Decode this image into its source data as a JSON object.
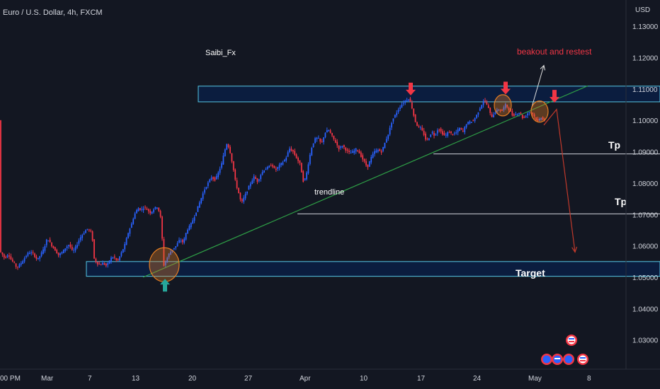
{
  "chart_data": {
    "type": "candlestick",
    "title": "Euro / U.S. Dollar, 4h, FXCM",
    "currency_label": "USD",
    "y_ticks": [
      "1.13000",
      "1.12000",
      "1.11000",
      "1.10000",
      "1.09000",
      "1.08000",
      "1.07000",
      "1.06000",
      "1.05000",
      "1.04000",
      "1.03000"
    ],
    "y_tick_values": [
      1.13,
      1.12,
      1.11,
      1.1,
      1.09,
      1.08,
      1.07,
      1.06,
      1.05,
      1.04,
      1.03
    ],
    "ylim": [
      1.0225,
      1.137
    ],
    "x_ticks": [
      "00 PM",
      "Mar",
      "7",
      "13",
      "20",
      "27",
      "Apr",
      "10",
      "17",
      "24",
      "May",
      "8"
    ],
    "grid": false,
    "colors": {
      "up": "#2962ff",
      "down": "#f23645",
      "background": "#131722",
      "zone_fill": "#0b1d3f",
      "zone_border": "#56c8e6",
      "trendline": "#2e9e46",
      "projection": "#c0392b",
      "marker": "#f23645",
      "support_arrow": "#26a69a"
    },
    "price_path": [
      [
        0,
        1.0585
      ],
      [
        4,
        1.0575
      ],
      [
        8,
        1.056
      ],
      [
        13,
        1.0575
      ],
      [
        17,
        1.0555
      ],
      [
        21,
        1.0545
      ],
      [
        25,
        1.053
      ],
      [
        31,
        1.0545
      ],
      [
        37,
        1.0565
      ],
      [
        42,
        1.058
      ],
      [
        48,
        1.0575
      ],
      [
        54,
        1.0555
      ],
      [
        58,
        1.057
      ],
      [
        63,
        1.059
      ],
      [
        68,
        1.0625
      ],
      [
        73,
        1.0605
      ],
      [
        78,
        1.059
      ],
      [
        84,
        1.057
      ],
      [
        89,
        1.058
      ],
      [
        94,
        1.0595
      ],
      [
        99,
        1.0605
      ],
      [
        104,
        1.058
      ],
      [
        109,
        1.06
      ],
      [
        114,
        1.0625
      ],
      [
        119,
        1.064
      ],
      [
        124,
        1.0655
      ],
      [
        127,
        1.065
      ],
      [
        131,
        1.064
      ],
      [
        134,
        1.056
      ],
      [
        138,
        1.0545
      ],
      [
        142,
        1.054
      ],
      [
        147,
        1.0545
      ],
      [
        152,
        1.0535
      ],
      [
        157,
        1.056
      ],
      [
        162,
        1.0565
      ],
      [
        167,
        1.055
      ],
      [
        172,
        1.0575
      ],
      [
        177,
        1.06
      ],
      [
        182,
        1.064
      ],
      [
        187,
        1.067
      ],
      [
        191,
        1.07
      ],
      [
        196,
        1.072
      ],
      [
        201,
        1.0715
      ],
      [
        205,
        1.0725
      ],
      [
        209,
        1.0715
      ],
      [
        214,
        1.0705
      ],
      [
        219,
        1.072
      ],
      [
        224,
        1.0725
      ],
      [
        229,
        1.068
      ],
      [
        232,
        1.0535
      ],
      [
        236,
        1.0555
      ],
      [
        240,
        1.0575
      ],
      [
        245,
        1.059
      ],
      [
        250,
        1.06
      ],
      [
        255,
        1.062
      ],
      [
        260,
        1.061
      ],
      [
        265,
        1.065
      ],
      [
        270,
        1.0665
      ],
      [
        275,
        1.069
      ],
      [
        280,
        1.072
      ],
      [
        285,
        1.075
      ],
      [
        290,
        1.078
      ],
      [
        295,
        1.08
      ],
      [
        300,
        1.082
      ],
      [
        305,
        1.081
      ],
      [
        309,
        1.083
      ],
      [
        314,
        1.086
      ],
      [
        318,
        1.09
      ],
      [
        322,
        1.093
      ],
      [
        326,
        1.09
      ],
      [
        330,
        1.0855
      ],
      [
        334,
        1.08
      ],
      [
        338,
        1.077
      ],
      [
        342,
        1.0735
      ],
      [
        346,
        1.0755
      ],
      [
        350,
        1.0775
      ],
      [
        355,
        1.08
      ],
      [
        360,
        1.082
      ],
      [
        365,
        1.0805
      ],
      [
        370,
        1.083
      ],
      [
        375,
        1.0845
      ],
      [
        380,
        1.085
      ],
      [
        385,
        1.086
      ],
      [
        390,
        1.084
      ],
      [
        395,
        1.0855
      ],
      [
        400,
        1.0865
      ],
      [
        405,
        1.088
      ],
      [
        410,
        1.091
      ],
      [
        415,
        1.09
      ],
      [
        420,
        1.088
      ],
      [
        425,
        1.086
      ],
      [
        430,
        1.08
      ],
      [
        434,
        1.083
      ],
      [
        438,
        1.088
      ],
      [
        442,
        1.092
      ],
      [
        446,
        1.094
      ],
      [
        450,
        1.0945
      ],
      [
        455,
        1.0925
      ],
      [
        460,
        1.096
      ],
      [
        465,
        1.097
      ],
      [
        470,
        1.095
      ],
      [
        475,
        1.093
      ],
      [
        480,
        1.091
      ],
      [
        485,
        1.092
      ],
      [
        490,
        1.0905
      ],
      [
        495,
        1.0895
      ],
      [
        500,
        1.09
      ],
      [
        505,
        1.091
      ],
      [
        510,
        1.089
      ],
      [
        515,
        1.087
      ],
      [
        520,
        1.085
      ],
      [
        525,
        1.088
      ],
      [
        530,
        1.09
      ],
      [
        535,
        1.0905
      ],
      [
        540,
        1.09
      ],
      [
        545,
        1.093
      ],
      [
        550,
        1.096
      ],
      [
        555,
        1.1
      ],
      [
        560,
        1.102
      ],
      [
        565,
        1.104
      ],
      [
        570,
        1.1055
      ],
      [
        575,
        1.1065
      ],
      [
        579,
        1.107
      ],
      [
        583,
        1.104
      ],
      [
        587,
        1.1
      ],
      [
        591,
        1.098
      ],
      [
        595,
        1.0975
      ],
      [
        599,
        1.096
      ],
      [
        603,
        1.0935
      ],
      [
        607,
        1.0945
      ],
      [
        611,
        1.0965
      ],
      [
        615,
        1.095
      ],
      [
        620,
        1.0975
      ],
      [
        625,
        1.096
      ],
      [
        630,
        1.095
      ],
      [
        635,
        1.0965
      ],
      [
        640,
        1.0955
      ],
      [
        645,
        1.096
      ],
      [
        650,
        1.0975
      ],
      [
        655,
        1.0965
      ],
      [
        660,
        1.099
      ],
      [
        665,
        1.0995
      ],
      [
        670,
        1.1
      ],
      [
        675,
        1.102
      ],
      [
        680,
        1.1045
      ],
      [
        685,
        1.1065
      ],
      [
        690,
        1.1045
      ],
      [
        695,
        1.101
      ],
      [
        700,
        1.1025
      ],
      [
        705,
        1.1035
      ],
      [
        710,
        1.103
      ],
      [
        715,
        1.105
      ],
      [
        720,
        1.1035
      ],
      [
        725,
        1.1015
      ],
      [
        730,
        1.102
      ],
      [
        735,
        1.1025
      ],
      [
        740,
        1.1005
      ],
      [
        745,
        1.102
      ],
      [
        750,
        1.103
      ],
      [
        755,
        1.1015
      ],
      [
        760,
        1.0995
      ],
      [
        765,
        1.101
      ],
      [
        770,
        1.1
      ]
    ],
    "zones": [
      {
        "name": "resistance-zone",
        "x_start": 280,
        "x_end": 932,
        "y_top": 1.1109,
        "y_bottom": 1.1059
      },
      {
        "name": "target-zone",
        "label": "Target",
        "x_start": 122,
        "x_end": 932,
        "y_top": 1.055,
        "y_bottom": 1.0503
      }
    ],
    "trendline": {
      "label": "trendline",
      "from": [
        202,
        1.05
      ],
      "to": [
        830,
        1.111
      ]
    },
    "tp_lines": [
      {
        "label": "Tp",
        "x_start": 612,
        "x_end": 932,
        "y": 1.0893
      },
      {
        "label": "Tp",
        "x_start": 420,
        "x_end": 932,
        "y": 1.0702
      }
    ],
    "projection": [
      [
        768,
        1.0985
      ],
      [
        786,
        1.1035
      ],
      [
        812,
        1.058
      ]
    ],
    "markers_down": [
      [
        580,
        1.1075
      ],
      [
        714,
        1.1078
      ],
      [
        783,
        1.1052
      ]
    ],
    "marker_up": [
      233,
      1.0495
    ],
    "circles": [
      [
        232,
        1.054
      ],
      [
        710,
        1.1048
      ],
      [
        762,
        1.1028
      ]
    ],
    "annotations": {
      "author": "Saibi_Fx",
      "breakout": "beakout and restest",
      "trendline": "trendline",
      "target": "Target",
      "tp1": "Tp",
      "tp2": "Tp"
    },
    "breakout_arrow": {
      "from": [
        750,
        1.1035
      ],
      "to": [
        768,
        1.1175
      ]
    }
  }
}
